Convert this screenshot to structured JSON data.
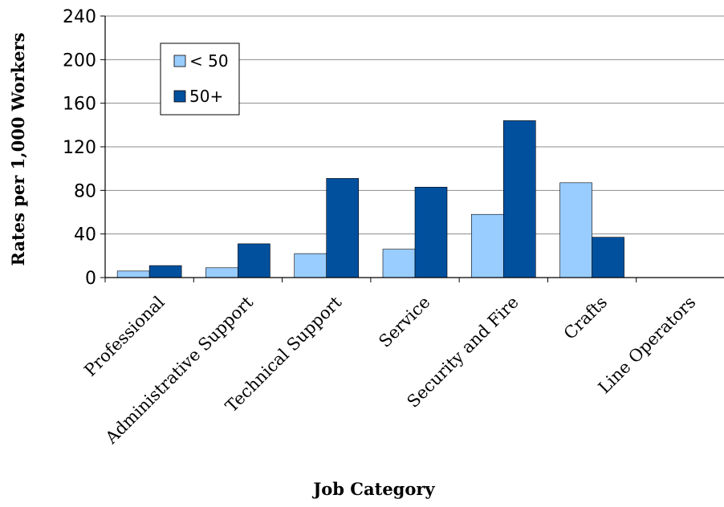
{
  "chart_data": {
    "type": "bar",
    "categories": [
      "Professional",
      "Administrative Support",
      "Technical Support",
      "Service",
      "Security and Fire",
      "Crafts",
      "Line Operators"
    ],
    "series": [
      {
        "name": "< 50",
        "color": "#99CCFF",
        "values": [
          6,
          9,
          22,
          26,
          58,
          87,
          0
        ]
      },
      {
        "name": "50+",
        "color": "#00509E",
        "values": [
          11,
          31,
          91,
          83,
          144,
          37,
          0
        ]
      }
    ],
    "title": "",
    "xlabel": "Job Category",
    "ylabel": "Rates per 1,000 Workers",
    "ylim": [
      0,
      240
    ],
    "yticks": [
      "0",
      "40",
      "80",
      "120",
      "160",
      "200",
      "240"
    ],
    "grid": true,
    "legend_position": "top-left"
  }
}
